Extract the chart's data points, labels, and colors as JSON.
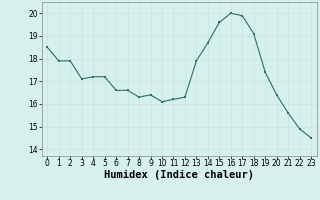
{
  "x": [
    0,
    1,
    2,
    3,
    4,
    5,
    6,
    7,
    8,
    9,
    10,
    11,
    12,
    13,
    14,
    15,
    16,
    17,
    18,
    19,
    20,
    21,
    22,
    23
  ],
  "y": [
    18.5,
    17.9,
    17.9,
    17.1,
    17.2,
    17.2,
    16.6,
    16.6,
    16.3,
    16.4,
    16.1,
    16.2,
    16.3,
    17.9,
    18.7,
    19.6,
    20.0,
    19.9,
    19.1,
    17.4,
    16.4,
    15.6,
    14.9,
    14.5
  ],
  "xlabel": "Humidex (Indice chaleur)",
  "ylim": [
    13.7,
    20.5
  ],
  "xlim": [
    -0.5,
    23.5
  ],
  "yticks": [
    14,
    15,
    16,
    17,
    18,
    19,
    20
  ],
  "xticks": [
    0,
    1,
    2,
    3,
    4,
    5,
    6,
    7,
    8,
    9,
    10,
    11,
    12,
    13,
    14,
    15,
    16,
    17,
    18,
    19,
    20,
    21,
    22,
    23
  ],
  "line_color": "#2d7060",
  "marker_color": "#2d7060",
  "bg_color": "#d6f0ec",
  "grid_color_major": "#c0e0db",
  "grid_color_minor": "#e0f5f2",
  "tick_fontsize": 5.5,
  "xlabel_fontsize": 7.5
}
